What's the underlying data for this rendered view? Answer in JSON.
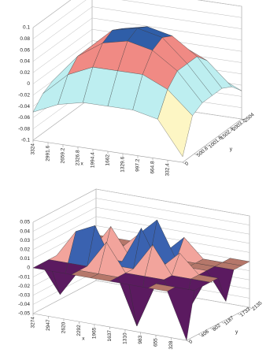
{
  "chart_data": [
    {
      "type": "surface",
      "x_label": "x",
      "y_label": "y",
      "xlim": [
        3324,
        0
      ],
      "xticks": [
        3324,
        2991.6,
        2659.2,
        2326.8,
        1994.4,
        1662,
        1329.6,
        997.2,
        664.8,
        332.4
      ],
      "ylim": [
        0,
        2504
      ],
      "yticks": [
        0,
        500.8,
        1001.6,
        1502.4,
        2003.2,
        2504
      ],
      "zlim": [
        -0.1,
        0.1
      ],
      "zticks": [
        0.1,
        0.08,
        0.06,
        0.04,
        0.02,
        0,
        -0.02,
        -0.04,
        -0.06,
        -0.08,
        -0.1
      ],
      "color_by": "mean",
      "color_bands": [
        {
          "above": 0.06,
          "color": "#2f5ea8"
        },
        {
          "above": 0.025,
          "color": "#f08a84"
        },
        {
          "above": 0.005,
          "color": "#6a1f6e"
        },
        {
          "above": -0.025,
          "color": "#bdeef0"
        },
        {
          "above": -0.06,
          "color": "#fdf6c4"
        }
      ],
      "base_color": "#6a1f6e",
      "values": [
        [
          -0.05,
          -0.03,
          -0.02,
          -0.02,
          -0.02,
          -0.03,
          -0.05
        ],
        [
          -0.03,
          0.01,
          0.03,
          0.03,
          0.03,
          0.01,
          -0.03
        ],
        [
          -0.02,
          0.03,
          0.06,
          0.07,
          0.06,
          0.03,
          -0.02
        ],
        [
          -0.02,
          0.03,
          0.07,
          0.08,
          0.07,
          0.03,
          -0.02
        ],
        [
          -0.02,
          0.03,
          0.06,
          0.07,
          0.06,
          0.03,
          -0.02
        ],
        [
          -0.03,
          0.01,
          0.03,
          0.03,
          0.03,
          0.01,
          -0.03
        ],
        [
          -0.09,
          -0.03,
          -0.02,
          -0.02,
          -0.02,
          -0.03,
          -0.05
        ]
      ]
    },
    {
      "type": "surface",
      "x_label": "x",
      "y_label": "y",
      "xlim": [
        3274,
        0
      ],
      "xticks": [
        3274,
        2947,
        2620,
        2292,
        1965,
        1637,
        1310,
        983,
        655,
        328
      ],
      "ylim": [
        0,
        2135
      ],
      "yticks": [
        0,
        406,
        802,
        1187,
        1733,
        2135
      ],
      "zlim": [
        -0.05,
        0.05
      ],
      "zticks": [
        0.05,
        0.04,
        0.03,
        0.02,
        0.01,
        0,
        -0.01,
        -0.02,
        -0.03,
        -0.04,
        -0.05
      ],
      "color_by": "extreme",
      "color_bands": [
        {
          "above": 0.035,
          "color": "#3a62b0"
        },
        {
          "above": 0.015,
          "color": "#f2a49c"
        },
        {
          "above": -0.015,
          "color": "#b5776a"
        }
      ],
      "base_color": "#5b1a60",
      "values": [
        [
          0,
          0,
          0,
          0,
          0,
          0,
          0,
          0,
          0
        ],
        [
          0,
          -0.03,
          0,
          0.03,
          0,
          0,
          0,
          0,
          0
        ],
        [
          0,
          0,
          0,
          0.04,
          0,
          0.03,
          0,
          0,
          0
        ],
        [
          0,
          0,
          0.03,
          0,
          0,
          0,
          0.02,
          0,
          0
        ],
        [
          0,
          0,
          0,
          0,
          0.04,
          0,
          0.04,
          0,
          0
        ],
        [
          0,
          -0.05,
          0,
          0.03,
          0,
          0,
          0,
          0.02,
          0
        ],
        [
          0,
          0,
          0,
          0,
          0.02,
          0,
          0,
          0,
          -0.03
        ],
        [
          0,
          0,
          -0.04,
          0,
          0,
          0,
          0,
          0,
          0
        ],
        [
          -0.05,
          0,
          0,
          0,
          0,
          -0.03,
          0,
          0,
          0
        ]
      ]
    }
  ]
}
